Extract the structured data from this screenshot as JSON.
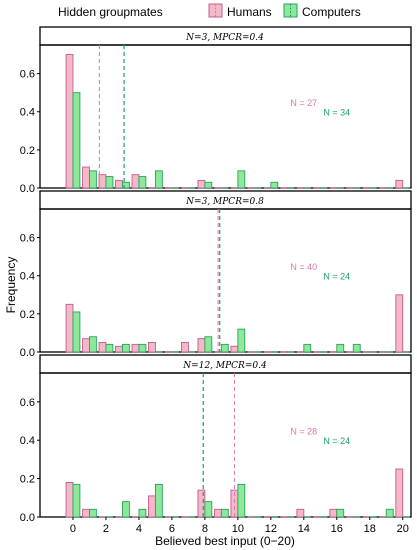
{
  "chart_data": {
    "type": "bar",
    "legend": {
      "title": "Hidden groupmates",
      "position": "top",
      "entries": [
        {
          "name": "Humans",
          "color": "#f4b8c8",
          "stroke": "#c45c8e",
          "line": "#d977a8"
        },
        {
          "name": "Computers",
          "color": "#8ee89a",
          "stroke": "#2aa060",
          "line": "#1a9e6a"
        }
      ]
    },
    "xlabel": "Believed best input (0−20)",
    "ylabel": "Frequency",
    "xlim": [
      -2,
      20.5
    ],
    "ylim": [
      0,
      0.75
    ],
    "xticks": [
      0,
      2,
      4,
      6,
      8,
      10,
      12,
      14,
      16,
      18,
      20
    ],
    "yticks": [
      0.0,
      0.2,
      0.4,
      0.6
    ],
    "ytick_labels": [
      "0.0",
      "0.2",
      "0.4",
      "0.6"
    ],
    "panels": [
      {
        "strip": "N=3, MPCR=0.4",
        "n_humans": "N = 27",
        "n_computers": "N = 34",
        "n_humans_pos": [
          14,
          0.43
        ],
        "n_computers_pos": [
          16,
          0.38
        ],
        "mean_humans": 1.6,
        "mean_computers": 3.1,
        "humans": [
          0.7,
          0.11,
          0.07,
          0.04,
          0.07,
          0.0,
          0.0,
          0.0,
          0.04,
          0.0,
          0.0,
          0.0,
          0.0,
          0.0,
          0.0,
          0.0,
          0.0,
          0.0,
          0.0,
          0.0,
          0.04
        ],
        "computers": [
          0.5,
          0.09,
          0.06,
          0.03,
          0.06,
          0.09,
          0.0,
          0.0,
          0.03,
          0.0,
          0.09,
          0.0,
          0.03,
          0.0,
          0.0,
          0.0,
          0.0,
          0.0,
          0.0,
          0.0,
          0.0
        ]
      },
      {
        "strip": "N=3, MPCR=0.8",
        "n_humans": "N = 40",
        "n_computers": "N = 24",
        "n_humans_pos": [
          14,
          0.43
        ],
        "n_computers_pos": [
          16,
          0.38
        ],
        "mean_humans": 8.8,
        "mean_computers": 8.9,
        "humans": [
          0.25,
          0.07,
          0.05,
          0.03,
          0.04,
          0.05,
          0.0,
          0.05,
          0.07,
          0.0,
          0.03,
          0.0,
          0.0,
          0.0,
          0.0,
          0.0,
          0.0,
          0.0,
          0.0,
          0.0,
          0.3
        ],
        "computers": [
          0.21,
          0.08,
          0.04,
          0.04,
          0.04,
          0.0,
          0.0,
          0.0,
          0.08,
          0.04,
          0.12,
          0.0,
          0.0,
          0.0,
          0.04,
          0.0,
          0.04,
          0.04,
          0.0,
          0.0,
          0.0
        ]
      },
      {
        "strip": "N=12, MPCR=0.4",
        "n_humans": "N = 28",
        "n_computers": "N = 24",
        "n_humans_pos": [
          14,
          0.43
        ],
        "n_computers_pos": [
          16,
          0.38
        ],
        "mean_humans": 9.8,
        "mean_computers": 7.9,
        "humans": [
          0.18,
          0.04,
          0.0,
          0.0,
          0.0,
          0.11,
          0.0,
          0.0,
          0.14,
          0.04,
          0.14,
          0.0,
          0.0,
          0.0,
          0.04,
          0.0,
          0.04,
          0.0,
          0.0,
          0.0,
          0.25
        ],
        "computers": [
          0.17,
          0.04,
          0.0,
          0.08,
          0.04,
          0.17,
          0.0,
          0.0,
          0.08,
          0.04,
          0.17,
          0.0,
          0.0,
          0.0,
          0.0,
          0.0,
          0.04,
          0.0,
          0.0,
          0.04,
          0.0
        ]
      }
    ]
  }
}
